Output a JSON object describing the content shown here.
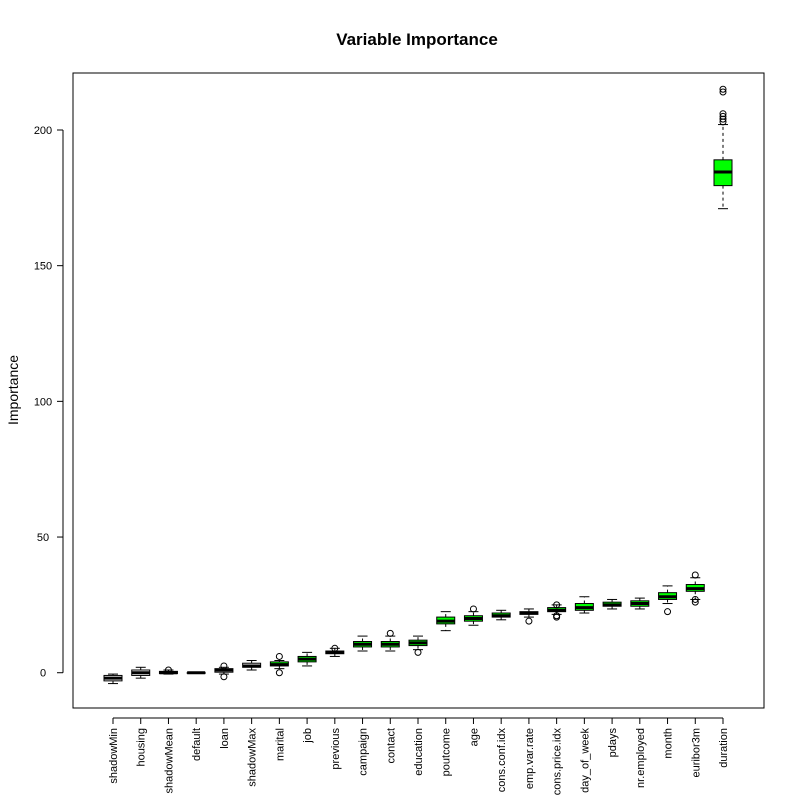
{
  "chart_data": {
    "type": "boxplot",
    "title": "Variable Importance",
    "xlabel": "",
    "ylabel": "Importance",
    "ylim": [
      -13,
      221
    ],
    "yticks": [
      0,
      50,
      100,
      150,
      200
    ],
    "grid": false,
    "legend": "none",
    "colors": {
      "rejected": "#ffffff",
      "confirmed": "#00ff00",
      "outline": "#000000"
    },
    "categories": [
      "shadowMin",
      "housing",
      "shadowMean",
      "default",
      "loan",
      "shadowMax",
      "marital",
      "job",
      "previous",
      "campaign",
      "contact",
      "education",
      "poutcome",
      "age",
      "cons.conf.idx",
      "emp.var.rate",
      "cons.price.idx",
      "day_of_week",
      "pdays",
      "nr.employed",
      "month",
      "euribor3m",
      "duration"
    ],
    "boxes": [
      {
        "name": "shadowMin",
        "min": -4,
        "q1": -3,
        "median": -2,
        "q3": -1,
        "max": -0.5,
        "outliers": [],
        "status": "shadow"
      },
      {
        "name": "housing",
        "min": -2,
        "q1": -1,
        "median": 0,
        "q3": 1,
        "max": 2,
        "outliers": [],
        "status": "rejected"
      },
      {
        "name": "shadowMean",
        "min": -0.5,
        "q1": -0.3,
        "median": 0,
        "q3": 0.5,
        "max": 1,
        "outliers": [
          1
        ],
        "status": "shadow"
      },
      {
        "name": "default",
        "min": 0,
        "q1": 0,
        "median": 0,
        "q3": 0,
        "max": 0,
        "outliers": [],
        "status": "rejected"
      },
      {
        "name": "loan",
        "min": -0.5,
        "q1": 0.2,
        "median": 1,
        "q3": 1.5,
        "max": 2,
        "outliers": [
          2.5,
          -1.5
        ],
        "status": "rejected"
      },
      {
        "name": "shadowMax",
        "min": 1,
        "q1": 2,
        "median": 2.5,
        "q3": 3.5,
        "max": 4.5,
        "outliers": [],
        "status": "shadow"
      },
      {
        "name": "marital",
        "min": 1.5,
        "q1": 2.5,
        "median": 3,
        "q3": 4,
        "max": 4.5,
        "outliers": [
          6,
          0
        ],
        "status": "confirmed"
      },
      {
        "name": "job",
        "min": 2.5,
        "q1": 4,
        "median": 5,
        "q3": 6,
        "max": 7.5,
        "outliers": [],
        "status": "confirmed"
      },
      {
        "name": "previous",
        "min": 6,
        "q1": 7,
        "median": 7.5,
        "q3": 8,
        "max": 9,
        "outliers": [
          9
        ],
        "status": "confirmed"
      },
      {
        "name": "campaign",
        "min": 8,
        "q1": 9.5,
        "median": 10.5,
        "q3": 11.5,
        "max": 13.5,
        "outliers": [],
        "status": "confirmed"
      },
      {
        "name": "contact",
        "min": 8,
        "q1": 9.5,
        "median": 10.5,
        "q3": 11.5,
        "max": 13.5,
        "outliers": [
          14.5
        ],
        "status": "confirmed"
      },
      {
        "name": "education",
        "min": 8.5,
        "q1": 10,
        "median": 11,
        "q3": 12,
        "max": 13.5,
        "outliers": [
          7.5
        ],
        "status": "confirmed"
      },
      {
        "name": "poutcome",
        "min": 15.5,
        "q1": 18,
        "median": 19,
        "q3": 20.5,
        "max": 22.5,
        "outliers": [],
        "status": "confirmed"
      },
      {
        "name": "age",
        "min": 17.5,
        "q1": 19,
        "median": 20,
        "q3": 21,
        "max": 22.5,
        "outliers": [
          23.5
        ],
        "status": "confirmed"
      },
      {
        "name": "cons.conf.idx",
        "min": 19.5,
        "q1": 20.5,
        "median": 21,
        "q3": 22,
        "max": 23,
        "outliers": [],
        "status": "confirmed"
      },
      {
        "name": "emp.var.rate",
        "min": 20.5,
        "q1": 21.5,
        "median": 22,
        "q3": 22.5,
        "max": 23.5,
        "outliers": [
          19
        ],
        "status": "confirmed"
      },
      {
        "name": "cons.price.idx",
        "min": 21.5,
        "q1": 22.5,
        "median": 23,
        "q3": 24,
        "max": 25,
        "outliers": [
          20.5,
          21,
          25
        ],
        "status": "confirmed"
      },
      {
        "name": "day_of_week",
        "min": 22,
        "q1": 23,
        "median": 24,
        "q3": 25.5,
        "max": 28,
        "outliers": [],
        "status": "confirmed"
      },
      {
        "name": "pdays",
        "min": 23.5,
        "q1": 24.5,
        "median": 25,
        "q3": 26,
        "max": 27,
        "outliers": [],
        "status": "confirmed"
      },
      {
        "name": "nr.employed",
        "min": 23.5,
        "q1": 24.5,
        "median": 25.5,
        "q3": 26.5,
        "max": 27.5,
        "outliers": [],
        "status": "confirmed"
      },
      {
        "name": "month",
        "min": 25.5,
        "q1": 27,
        "median": 28,
        "q3": 29.5,
        "max": 32,
        "outliers": [
          22.5
        ],
        "status": "confirmed"
      },
      {
        "name": "euribor3m",
        "min": 27,
        "q1": 30,
        "median": 31,
        "q3": 32.5,
        "max": 35,
        "outliers": [
          36,
          26,
          27
        ],
        "status": "confirmed"
      },
      {
        "name": "duration",
        "min": 171,
        "q1": 179.5,
        "median": 184.5,
        "q3": 189,
        "max": 202,
        "outliers": [
          203,
          204,
          205,
          206,
          214,
          215
        ],
        "status": "confirmed"
      }
    ]
  }
}
